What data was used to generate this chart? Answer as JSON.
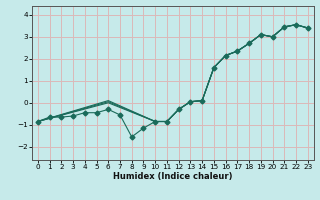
{
  "xlabel": "Humidex (Indice chaleur)",
  "background_color": "#c6eaea",
  "grid_color": "#dbb8b8",
  "line_color": "#1a6b5a",
  "spine_color": "#555555",
  "xlim": [
    -0.5,
    23.5
  ],
  "ylim": [
    -2.6,
    4.4
  ],
  "xticks": [
    0,
    1,
    2,
    3,
    4,
    5,
    6,
    7,
    8,
    9,
    10,
    11,
    12,
    13,
    14,
    15,
    16,
    17,
    18,
    19,
    20,
    21,
    22,
    23
  ],
  "yticks": [
    -2,
    -1,
    0,
    1,
    2,
    3,
    4
  ],
  "line1_x": [
    0,
    1,
    2,
    3,
    4,
    5,
    6,
    7,
    8,
    9,
    10,
    11,
    12,
    13,
    14,
    15,
    16,
    17,
    18,
    19,
    20,
    21,
    22,
    23
  ],
  "line1_y": [
    -0.85,
    -0.65,
    -0.65,
    -0.6,
    -0.45,
    -0.45,
    -0.3,
    -0.55,
    -1.55,
    -1.15,
    -0.85,
    -0.85,
    -0.3,
    0.05,
    0.1,
    1.6,
    2.15,
    2.35,
    2.7,
    3.1,
    3.0,
    3.45,
    3.55,
    3.4
  ],
  "line2_x": [
    0,
    6,
    10,
    11,
    12,
    13,
    14,
    15,
    16,
    17,
    18,
    19,
    20,
    21,
    22,
    23
  ],
  "line2_y": [
    -0.85,
    0.0,
    -0.85,
    -0.85,
    -0.3,
    0.05,
    0.1,
    1.6,
    2.15,
    2.35,
    2.7,
    3.1,
    3.0,
    3.45,
    3.55,
    3.4
  ],
  "line3_x": [
    0,
    6,
    10,
    11,
    12,
    13,
    14,
    15,
    16,
    17,
    18,
    19,
    20,
    21,
    22,
    23
  ],
  "line3_y": [
    -0.85,
    0.05,
    -0.85,
    -0.85,
    -0.3,
    0.05,
    0.1,
    1.6,
    2.15,
    2.35,
    2.7,
    3.1,
    3.0,
    3.45,
    3.55,
    3.4
  ],
  "line4_x": [
    0,
    6,
    10,
    11,
    12,
    13,
    14,
    15,
    16,
    17,
    18,
    19,
    20,
    21,
    22,
    23
  ],
  "line4_y": [
    -0.85,
    0.1,
    -0.85,
    -0.85,
    -0.3,
    0.05,
    0.1,
    1.6,
    2.15,
    2.35,
    2.7,
    3.1,
    3.0,
    3.45,
    3.55,
    3.4
  ],
  "tick_labelsize": 5.2,
  "xlabel_fontsize": 6.0,
  "lw": 0.8,
  "ms": 2.5
}
